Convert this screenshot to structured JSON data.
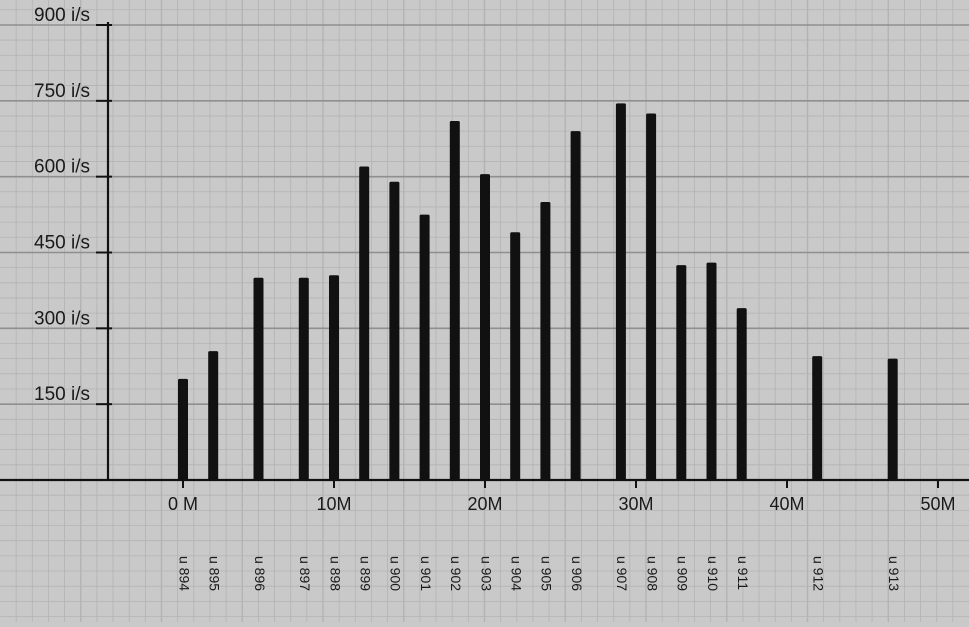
{
  "chart_data": {
    "type": "bar",
    "y_unit": "i/s",
    "ylim": [
      0,
      900
    ],
    "xlim": [
      -5,
      50
    ],
    "y_ticks": [
      {
        "value": 150,
        "label": "150 i/s"
      },
      {
        "value": 300,
        "label": "300 i/s"
      },
      {
        "value": 450,
        "label": "450 i/s"
      },
      {
        "value": 600,
        "label": "600 i/s"
      },
      {
        "value": 750,
        "label": "750 i/s"
      },
      {
        "value": 900,
        "label": "900 i/s"
      }
    ],
    "x_ticks": [
      {
        "value": 0,
        "label": "0 M"
      },
      {
        "value": 10,
        "label": "10M"
      },
      {
        "value": 20,
        "label": "20M"
      },
      {
        "value": 30,
        "label": "30M"
      },
      {
        "value": 40,
        "label": "40M"
      },
      {
        "value": 50,
        "label": "50M"
      }
    ],
    "bars": [
      {
        "x": 0,
        "value": 200,
        "label": "u 894"
      },
      {
        "x": 2,
        "value": 255,
        "label": "u 895"
      },
      {
        "x": 5,
        "value": 400,
        "label": "u 896"
      },
      {
        "x": 8,
        "value": 400,
        "label": "u 897"
      },
      {
        "x": 10,
        "value": 405,
        "label": "u 898"
      },
      {
        "x": 12,
        "value": 620,
        "label": "u 899"
      },
      {
        "x": 14,
        "value": 590,
        "label": "u 900"
      },
      {
        "x": 16,
        "value": 525,
        "label": "u 901"
      },
      {
        "x": 18,
        "value": 710,
        "label": "u 902"
      },
      {
        "x": 20,
        "value": 605,
        "label": "u 903"
      },
      {
        "x": 22,
        "value": 490,
        "label": "u 904"
      },
      {
        "x": 24,
        "value": 550,
        "label": "u 905"
      },
      {
        "x": 26,
        "value": 690,
        "label": "u 906"
      },
      {
        "x": 29,
        "value": 745,
        "label": "u 907"
      },
      {
        "x": 31,
        "value": 725,
        "label": "u 908"
      },
      {
        "x": 33,
        "value": 425,
        "label": "u 909"
      },
      {
        "x": 35,
        "value": 430,
        "label": "u 910"
      },
      {
        "x": 37,
        "value": 340,
        "label": "u 911"
      },
      {
        "x": 42,
        "value": 245,
        "label": "u 912"
      },
      {
        "x": 47,
        "value": 240,
        "label": "u 913"
      }
    ],
    "grid": true,
    "legend": "none",
    "colors": {
      "background": "#c9c9c9",
      "minor_grid": "#b3b3b3",
      "major_grid": "#8f8f8f",
      "bar": "#111111",
      "axis": "#111111"
    }
  }
}
